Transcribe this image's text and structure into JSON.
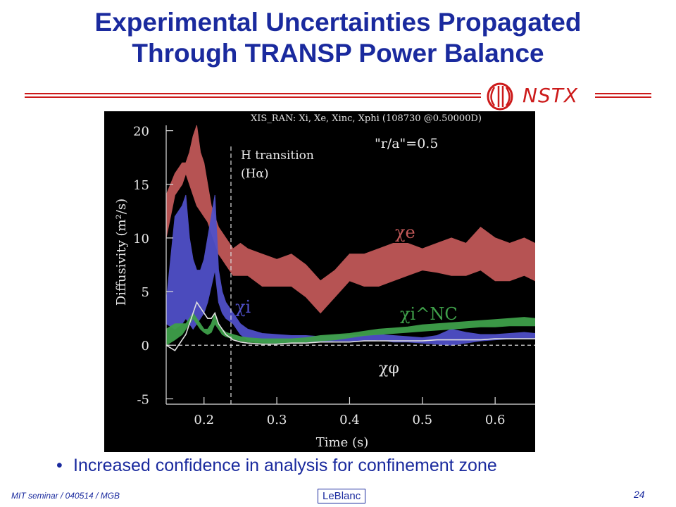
{
  "slide": {
    "title_line1": "Experimental Uncertainties Propagated",
    "title_line2": "Through TRANSP Power Balance",
    "logo_text": "NSTX",
    "bullet": "Increased confidence in analysis for confinement zone",
    "footer_left": "MIT seminar / 040514 / MGB",
    "footer_center": "LeBlanc",
    "page_number": "24",
    "colors": {
      "title": "#1a2a9e",
      "rule": "#cc1a1a"
    }
  },
  "chart_data": {
    "type": "area",
    "title": "XIS_RAN: Xi, Xe, Xinc, Xphi (108730 @0.50000D)",
    "subtitle": "\"r/a\"=0.5",
    "xlabel": "Time (s)",
    "ylabel": "Diffusivity (m²/s)",
    "xlim": [
      0.148,
      0.655
    ],
    "ylim": [
      -5.5,
      20.5
    ],
    "x_ticks": [
      "0.2",
      "0.3",
      "0.4",
      "0.5",
      "0.6"
    ],
    "y_ticks": [
      "20",
      "15",
      "10",
      "5",
      "0",
      "-5"
    ],
    "x_tick_values": [
      0.2,
      0.3,
      0.4,
      0.5,
      0.6
    ],
    "y_tick_values": [
      20,
      15,
      10,
      5,
      0,
      -5
    ],
    "annotations": [
      {
        "line1": "H transition",
        "line2": "(Hα)",
        "x": 0.237
      }
    ],
    "grid": false,
    "background": "#000000",
    "series": [
      {
        "name": "χe",
        "color": "#c05858",
        "x": [
          0.148,
          0.16,
          0.17,
          0.175,
          0.18,
          0.185,
          0.19,
          0.195,
          0.2,
          0.205,
          0.21,
          0.215,
          0.22,
          0.225,
          0.23,
          0.24,
          0.25,
          0.26,
          0.28,
          0.3,
          0.32,
          0.34,
          0.36,
          0.38,
          0.4,
          0.42,
          0.44,
          0.46,
          0.48,
          0.5,
          0.52,
          0.54,
          0.56,
          0.58,
          0.6,
          0.62,
          0.64,
          0.655
        ],
        "lower": [
          10,
          14,
          15,
          16,
          15,
          14,
          13,
          12.5,
          12,
          11.5,
          10.5,
          9.5,
          8.5,
          8,
          7.5,
          6.5,
          6.5,
          6.5,
          5.5,
          5.5,
          5.5,
          4.5,
          3,
          4.5,
          6,
          5.5,
          5.5,
          6,
          6.5,
          7,
          6.8,
          6.5,
          6.5,
          7,
          6,
          6,
          6.5,
          6
        ],
        "upper": [
          14,
          16,
          17,
          17,
          18,
          19.5,
          20.5,
          18,
          17,
          15,
          13,
          12,
          11,
          10.5,
          10,
          9,
          9.5,
          9,
          8.5,
          8,
          8.5,
          7.5,
          6,
          7,
          8.5,
          8.5,
          9,
          9.5,
          9.5,
          9,
          9.5,
          10,
          9.5,
          11,
          10,
          9.5,
          10,
          9.5
        ]
      },
      {
        "name": "χi",
        "color": "#5050c8",
        "x": [
          0.148,
          0.16,
          0.17,
          0.175,
          0.18,
          0.185,
          0.19,
          0.195,
          0.2,
          0.205,
          0.21,
          0.215,
          0.22,
          0.225,
          0.23,
          0.24,
          0.25,
          0.26,
          0.28,
          0.3,
          0.32,
          0.34,
          0.36,
          0.38,
          0.4,
          0.42,
          0.44,
          0.46,
          0.48,
          0.5,
          0.52,
          0.54,
          0.56,
          0.58,
          0.6,
          0.62,
          0.64,
          0.655
        ],
        "lower": [
          2,
          1.5,
          2,
          2.5,
          2,
          1.5,
          2,
          2.5,
          3,
          4,
          5.5,
          7,
          4,
          3,
          2.5,
          2,
          1,
          0.5,
          0.3,
          0.2,
          0.2,
          0.3,
          0.3,
          0.4,
          0.4,
          0.4,
          0.5,
          0.3,
          0.3,
          0.2,
          0.1,
          0,
          0.2,
          0.4,
          0.5,
          0.6,
          0.6,
          0.6
        ],
        "upper": [
          4,
          12,
          13,
          14,
          10,
          8,
          7,
          7,
          8,
          10,
          12,
          14,
          7,
          5,
          4,
          3,
          2,
          1.5,
          1.1,
          1,
          0.9,
          0.9,
          0.8,
          0.9,
          0.9,
          0.9,
          1,
          0.9,
          0.8,
          0.7,
          0.9,
          1.5,
          1.2,
          1,
          1,
          1.1,
          1.2,
          1.1
        ]
      },
      {
        "name": "χi^NC",
        "color": "#3fa04a",
        "x": [
          0.148,
          0.16,
          0.17,
          0.175,
          0.18,
          0.185,
          0.19,
          0.195,
          0.2,
          0.205,
          0.21,
          0.215,
          0.22,
          0.225,
          0.23,
          0.24,
          0.25,
          0.26,
          0.28,
          0.3,
          0.32,
          0.34,
          0.36,
          0.38,
          0.4,
          0.42,
          0.44,
          0.46,
          0.48,
          0.5,
          0.52,
          0.54,
          0.56,
          0.58,
          0.6,
          0.62,
          0.64,
          0.655
        ],
        "lower": [
          0,
          0.5,
          1,
          1.5,
          2,
          2.5,
          2,
          1.5,
          1.2,
          1,
          1.2,
          2,
          1.5,
          1,
          0.8,
          0.6,
          0.4,
          0.3,
          0.2,
          0.2,
          0.2,
          0.3,
          0.4,
          0.5,
          0.7,
          0.9,
          1,
          1.1,
          1.2,
          1.3,
          1.4,
          1.5,
          1.6,
          1.7,
          1.7,
          1.8,
          1.8,
          1.8
        ],
        "upper": [
          1.5,
          2,
          2,
          2,
          2.5,
          3,
          2.5,
          2,
          1.5,
          1.5,
          2,
          3,
          2,
          1.5,
          1.2,
          1,
          0.8,
          0.7,
          0.6,
          0.6,
          0.6,
          0.7,
          0.9,
          1,
          1.1,
          1.3,
          1.5,
          1.6,
          1.7,
          1.9,
          2,
          2.1,
          2.2,
          2.3,
          2.4,
          2.5,
          2.6,
          2.5
        ]
      },
      {
        "name": "χφ",
        "color": "#e0e0e0",
        "x": [
          0.148,
          0.16,
          0.17,
          0.175,
          0.18,
          0.185,
          0.19,
          0.195,
          0.2,
          0.205,
          0.21,
          0.215,
          0.22,
          0.225,
          0.23,
          0.24,
          0.25,
          0.26,
          0.28,
          0.3,
          0.32,
          0.34,
          0.36,
          0.38,
          0.4,
          0.42,
          0.44,
          0.46,
          0.48,
          0.5,
          0.52,
          0.54,
          0.56,
          0.58,
          0.6,
          0.62,
          0.64,
          0.655
        ],
        "values": [
          0,
          -0.5,
          0.5,
          1,
          2,
          3,
          4,
          3.5,
          3,
          2.5,
          2.5,
          3,
          2,
          1.5,
          1,
          0.5,
          0.3,
          0.2,
          0.1,
          0.1,
          0.2,
          0.2,
          0.3,
          0.3,
          0.3,
          0.4,
          0.4,
          0.4,
          0.4,
          0.4,
          0.5,
          0.5,
          0.5,
          0.5,
          0.6,
          0.6,
          0.6,
          0.6
        ]
      }
    ]
  }
}
